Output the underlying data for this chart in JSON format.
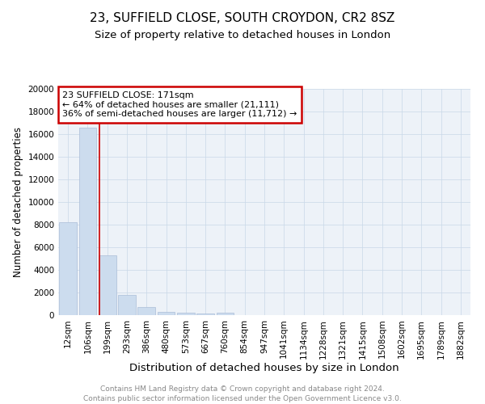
{
  "title": "23, SUFFIELD CLOSE, SOUTH CROYDON, CR2 8SZ",
  "subtitle": "Size of property relative to detached houses in London",
  "xlabel": "Distribution of detached houses by size in London",
  "ylabel": "Number of detached properties",
  "footer_line1": "Contains HM Land Registry data © Crown copyright and database right 2024.",
  "footer_line2": "Contains public sector information licensed under the Open Government Licence v3.0.",
  "categories": [
    "12sqm",
    "106sqm",
    "199sqm",
    "293sqm",
    "386sqm",
    "480sqm",
    "573sqm",
    "667sqm",
    "760sqm",
    "854sqm",
    "947sqm",
    "1041sqm",
    "1134sqm",
    "1228sqm",
    "1321sqm",
    "1415sqm",
    "1508sqm",
    "1602sqm",
    "1695sqm",
    "1789sqm",
    "1882sqm"
  ],
  "values": [
    8200,
    16600,
    5300,
    1800,
    750,
    310,
    220,
    160,
    200,
    0,
    0,
    0,
    0,
    0,
    0,
    0,
    0,
    0,
    0,
    0,
    0
  ],
  "bar_color": "#ccdcee",
  "bar_edge_color": "#aabdd8",
  "property_line_x": 1.62,
  "annotation_text_line1": "23 SUFFIELD CLOSE: 171sqm",
  "annotation_text_line2": "← 64% of detached houses are smaller (21,111)",
  "annotation_text_line3": "36% of semi-detached houses are larger (11,712) →",
  "annotation_box_color": "#cc0000",
  "property_line_color": "#cc0000",
  "ylim": [
    0,
    20000
  ],
  "yticks": [
    0,
    2000,
    4000,
    6000,
    8000,
    10000,
    12000,
    14000,
    16000,
    18000,
    20000
  ],
  "grid_color": "#c8d8e8",
  "background_color": "#edf2f8",
  "title_fontsize": 11,
  "subtitle_fontsize": 9.5,
  "xlabel_fontsize": 9.5,
  "ylabel_fontsize": 8.5,
  "tick_fontsize": 7.5,
  "annotation_fontsize": 8,
  "footer_fontsize": 6.5,
  "footer_color": "#888888"
}
